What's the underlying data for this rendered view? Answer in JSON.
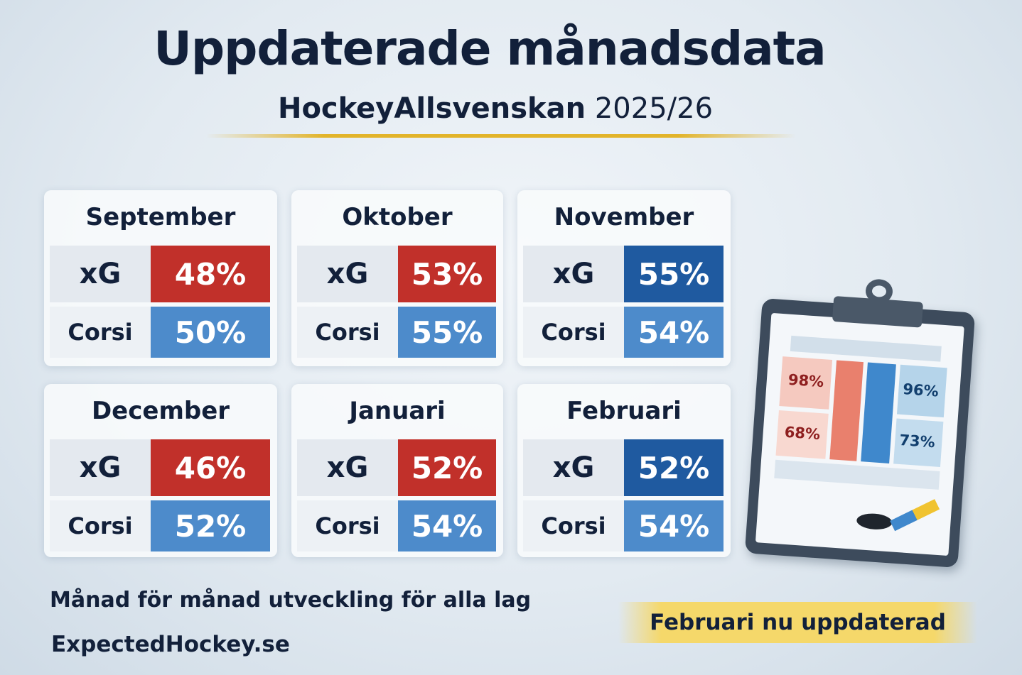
{
  "header": {
    "title": "Uppdaterade månadsdata",
    "subtitle_league": "HockeyAllsvenskan",
    "subtitle_season": "2025/26"
  },
  "labels": {
    "xg": "xG",
    "corsi": "Corsi"
  },
  "colors": {
    "red": "#c1302a",
    "dark_blue": "#1f5aa0",
    "light_blue": "#4d8bcb",
    "gold": "#e2b42a"
  },
  "months": [
    {
      "name": "September",
      "xg": "48%",
      "corsi": "50%",
      "xg_color": "red"
    },
    {
      "name": "Oktober",
      "xg": "53%",
      "corsi": "55%",
      "xg_color": "red"
    },
    {
      "name": "November",
      "xg": "55%",
      "corsi": "54%",
      "xg_color": "dark_blue"
    },
    {
      "name": "December",
      "xg": "46%",
      "corsi": "52%",
      "xg_color": "red"
    },
    {
      "name": "Januari",
      "xg": "52%",
      "corsi": "54%",
      "xg_color": "red"
    },
    {
      "name": "Februari",
      "xg": "52%",
      "corsi": "54%",
      "xg_color": "dark_blue"
    }
  ],
  "clipboard": {
    "values": [
      "98%",
      "68%",
      "96%",
      "73%"
    ],
    "icon": "clipboard-with-puck-and-stick"
  },
  "footer": {
    "tagline": "Månad för månad utveckling för alla lag",
    "site": "ExpectedHockey.se",
    "badge": "Februari nu uppdaterad"
  }
}
